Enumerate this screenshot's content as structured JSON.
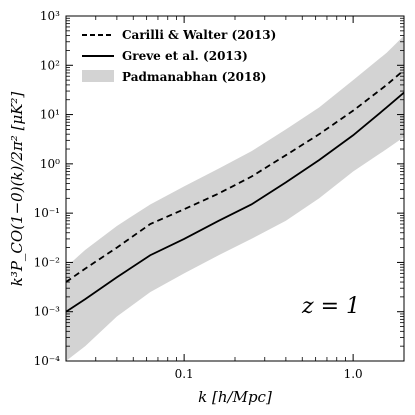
{
  "chart_data": {
    "type": "line",
    "xlabel": "k [h/Mpc]",
    "ylabel": "k³P_CO(1−0)(k)/2π² [μK²]",
    "xscale": "log",
    "yscale": "log",
    "xlim": [
      0.02,
      2.0
    ],
    "ylim": [
      0.0001,
      1000
    ],
    "x_ticks": [
      "0.1",
      "1.0"
    ],
    "y_ticks": [
      "10⁻⁴",
      "10⁻³",
      "10⁻²",
      "10⁻¹",
      "10⁰",
      "10¹",
      "10²",
      "10³"
    ],
    "annotation": "z = 1",
    "legend_position": "top-left",
    "series": [
      {
        "name": "Carilli & Walter (2013)",
        "style": "dashed",
        "color": "#000000",
        "x": [
          0.02,
          0.026,
          0.04,
          0.063,
          0.1,
          0.16,
          0.25,
          0.4,
          0.63,
          1.0,
          1.58,
          2.0
        ],
        "y": [
          0.004,
          0.0075,
          0.02,
          0.06,
          0.12,
          0.25,
          0.55,
          1.5,
          4.0,
          12,
          40,
          80
        ]
      },
      {
        "name": "Greve et al. (2013)",
        "style": "solid",
        "color": "#000000",
        "x": [
          0.02,
          0.026,
          0.04,
          0.063,
          0.1,
          0.16,
          0.25,
          0.4,
          0.63,
          1.0,
          1.58,
          2.0
        ],
        "y": [
          0.001,
          0.0018,
          0.005,
          0.014,
          0.03,
          0.07,
          0.15,
          0.42,
          1.2,
          3.8,
          14,
          28
        ]
      },
      {
        "name": "Padmanabhan (2018)",
        "style": "band",
        "color": "#d3d3d3",
        "x": [
          0.02,
          0.026,
          0.04,
          0.063,
          0.1,
          0.16,
          0.25,
          0.4,
          0.63,
          1.0,
          1.58,
          2.0
        ],
        "y_low": [
          0.0001,
          0.0002,
          0.0008,
          0.0025,
          0.006,
          0.014,
          0.03,
          0.07,
          0.2,
          0.7,
          2.0,
          3.5
        ],
        "y_high": [
          0.008,
          0.018,
          0.055,
          0.15,
          0.35,
          0.8,
          1.8,
          5.0,
          14,
          50,
          180,
          400
        ]
      }
    ]
  }
}
